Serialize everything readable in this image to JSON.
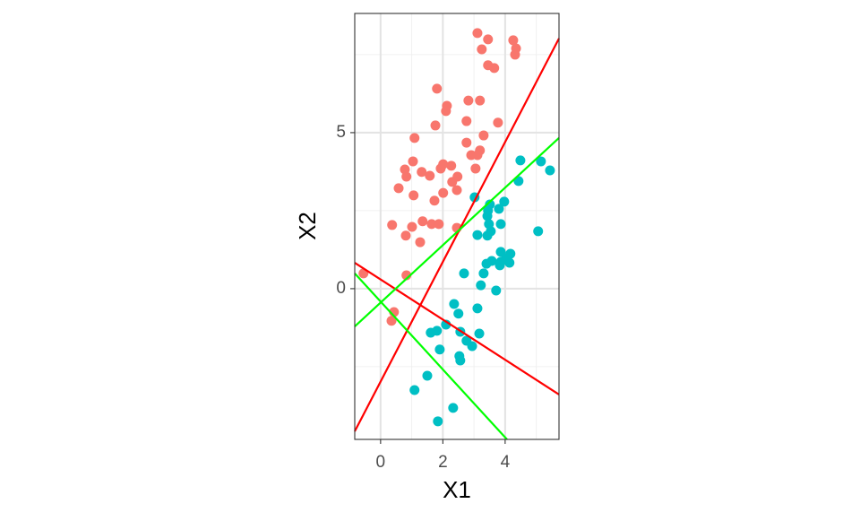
{
  "chart_data": {
    "type": "scatter",
    "x_label": "X1",
    "y_label": "X2",
    "xlim": [
      -0.83,
      5.73
    ],
    "ylim": [
      -4.83,
      8.82
    ],
    "xticks": [
      0,
      2,
      4
    ],
    "yticks": [
      0,
      5
    ],
    "grid": true,
    "series": [
      {
        "color": "#F8766D",
        "x": [
          -0.55,
          0.83,
          0.43,
          0.35,
          0.37,
          0.81,
          1.01,
          1.27,
          1.35,
          1.64,
          1.87,
          1.73,
          0.58,
          1.06,
          0.83,
          0.78,
          1.04,
          1.32,
          1.58,
          1.93,
          2.01,
          2.27,
          2.01,
          2.3,
          2.47,
          2.45,
          2.45,
          1.09,
          1.76,
          2.13,
          2.1,
          1.81,
          2.82,
          3.19,
          2.76,
          3.77,
          3.31,
          2.76,
          3.19,
          2.91,
          3.11,
          3.05,
          3.11,
          3.25,
          3.45,
          4.26,
          4.35,
          4.32,
          3.45,
          3.65
        ],
        "values": [
          0.49,
          0.43,
          -0.75,
          -1.03,
          2.04,
          1.7,
          1.98,
          1.49,
          2.16,
          2.07,
          2.07,
          2.82,
          3.22,
          2.99,
          3.59,
          3.82,
          4.08,
          3.74,
          3.62,
          3.85,
          3.99,
          3.94,
          3.07,
          3.42,
          3.59,
          3.16,
          1.95,
          4.83,
          5.23,
          5.86,
          5.69,
          6.41,
          6.03,
          6.03,
          5.37,
          5.32,
          4.91,
          4.68,
          4.43,
          4.28,
          4.28,
          3.85,
          8.19,
          7.67,
          7.99,
          7.96,
          7.7,
          7.5,
          7.16,
          7.07
        ]
      },
      {
        "color": "#00BFC4",
        "x": [
          4.49,
          5.15,
          5.44,
          4.43,
          3.02,
          3.51,
          3.45,
          3.8,
          3.97,
          3.43,
          3.48,
          3.86,
          3.54,
          3.11,
          3.43,
          5.06,
          3.86,
          4.17,
          4.03,
          3.57,
          3.4,
          3.86,
          4.14,
          2.68,
          3.31,
          3.83,
          3.22,
          3.71,
          2.36,
          2.5,
          3.11,
          2.1,
          1.81,
          1.61,
          2.56,
          3.17,
          2.76,
          2.94,
          1.9,
          2.53,
          2.56,
          1.5,
          1.09,
          2.33,
          1.84
        ],
        "values": [
          4.11,
          4.08,
          3.79,
          3.45,
          2.93,
          2.7,
          2.5,
          2.56,
          2.79,
          2.33,
          2.07,
          2.07,
          1.84,
          1.72,
          1.7,
          1.84,
          1.18,
          1.12,
          0.98,
          0.89,
          0.8,
          0.86,
          0.83,
          0.49,
          0.49,
          0.75,
          0.11,
          -0.06,
          -0.49,
          -0.8,
          -0.63,
          -1.15,
          -1.35,
          -1.41,
          -1.38,
          -1.44,
          -1.67,
          -1.84,
          -1.95,
          -2.16,
          -2.3,
          -2.79,
          -3.25,
          -3.82,
          -4.25
        ]
      }
    ],
    "lines": [
      {
        "color": "#FF0000",
        "x": [
          -0.83,
          5.73
        ],
        "values": [
          -4.57,
          8.02
        ]
      },
      {
        "color": "#FF0000",
        "x": [
          -0.83,
          5.73
        ],
        "values": [
          0.83,
          -3.39
        ]
      },
      {
        "color": "#00FF00",
        "x": [
          -0.83,
          5.73
        ],
        "values": [
          -1.21,
          4.83
        ]
      },
      {
        "color": "#00FF00",
        "x": [
          -0.83,
          4.06
        ],
        "values": [
          0.49,
          -4.83
        ]
      }
    ]
  }
}
